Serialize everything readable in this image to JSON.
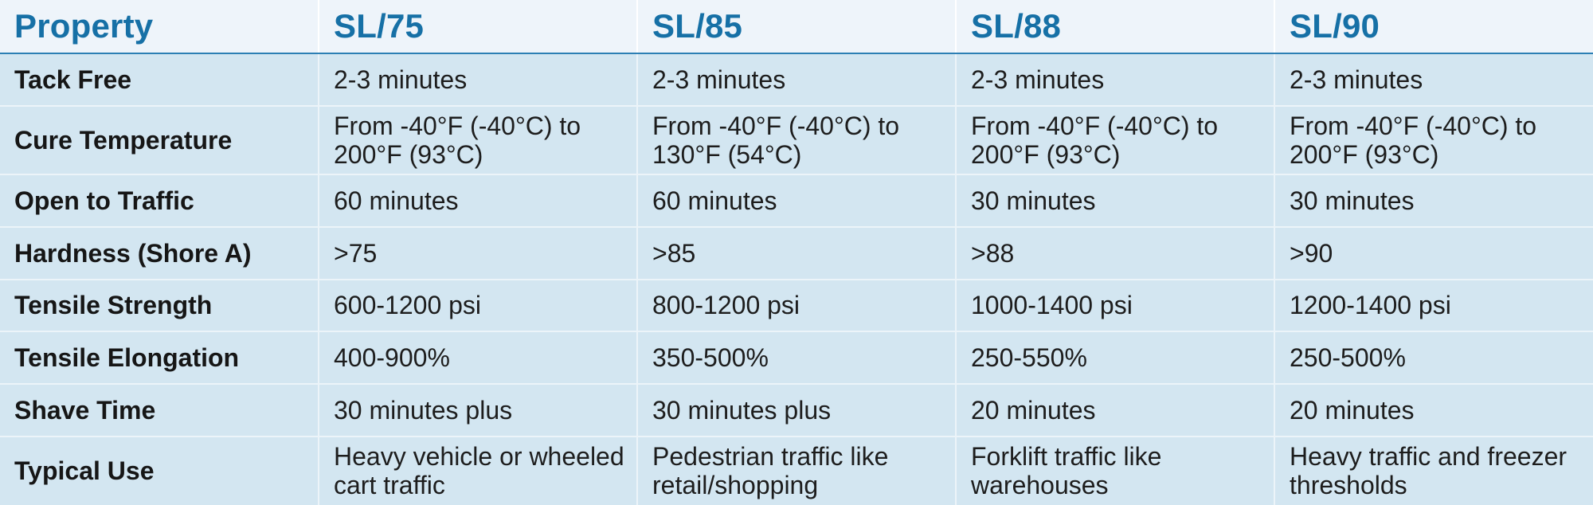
{
  "colors": {
    "header_bg": "#eef4fa",
    "header_text": "#1670a6",
    "cell_bg": "#d3e6f1",
    "divider": "#2c7fb4"
  },
  "table": {
    "headers": [
      "Property",
      "SL/75",
      "SL/85",
      "SL/88",
      "SL/90"
    ],
    "rows": [
      {
        "property": "Tack Free",
        "values": [
          "2-3 minutes",
          "2-3 minutes",
          "2-3 minutes",
          "2-3 minutes"
        ]
      },
      {
        "property": "Cure Temperature",
        "values": [
          "From -40°F (-40°C) to 200°F (93°C)",
          "From -40°F (-40°C) to 130°F (54°C)",
          "From -40°F (-40°C) to 200°F (93°C)",
          "From -40°F (-40°C) to 200°F (93°C)"
        ]
      },
      {
        "property": "Open to Traffic",
        "values": [
          "60 minutes",
          "60 minutes",
          "30 minutes",
          "30 minutes"
        ]
      },
      {
        "property": "Hardness (Shore A)",
        "values": [
          ">75",
          ">85",
          ">88",
          ">90"
        ]
      },
      {
        "property": "Tensile Strength",
        "values": [
          "600-1200 psi",
          "800-1200 psi",
          "1000-1400 psi",
          "1200-1400 psi"
        ]
      },
      {
        "property": "Tensile Elongation",
        "values": [
          "400-900%",
          "350-500%",
          "250-550%",
          "250-500%"
        ]
      },
      {
        "property": "Shave Time",
        "values": [
          "30 minutes plus",
          "30 minutes plus",
          "20 minutes",
          "20 minutes"
        ]
      },
      {
        "property": "Typical Use",
        "values": [
          "Heavy vehicle or wheeled cart traffic",
          "Pedestrian traffic like retail/shopping",
          "Forklift traffic like warehouses",
          "Heavy traffic and freezer thresholds"
        ]
      }
    ]
  }
}
